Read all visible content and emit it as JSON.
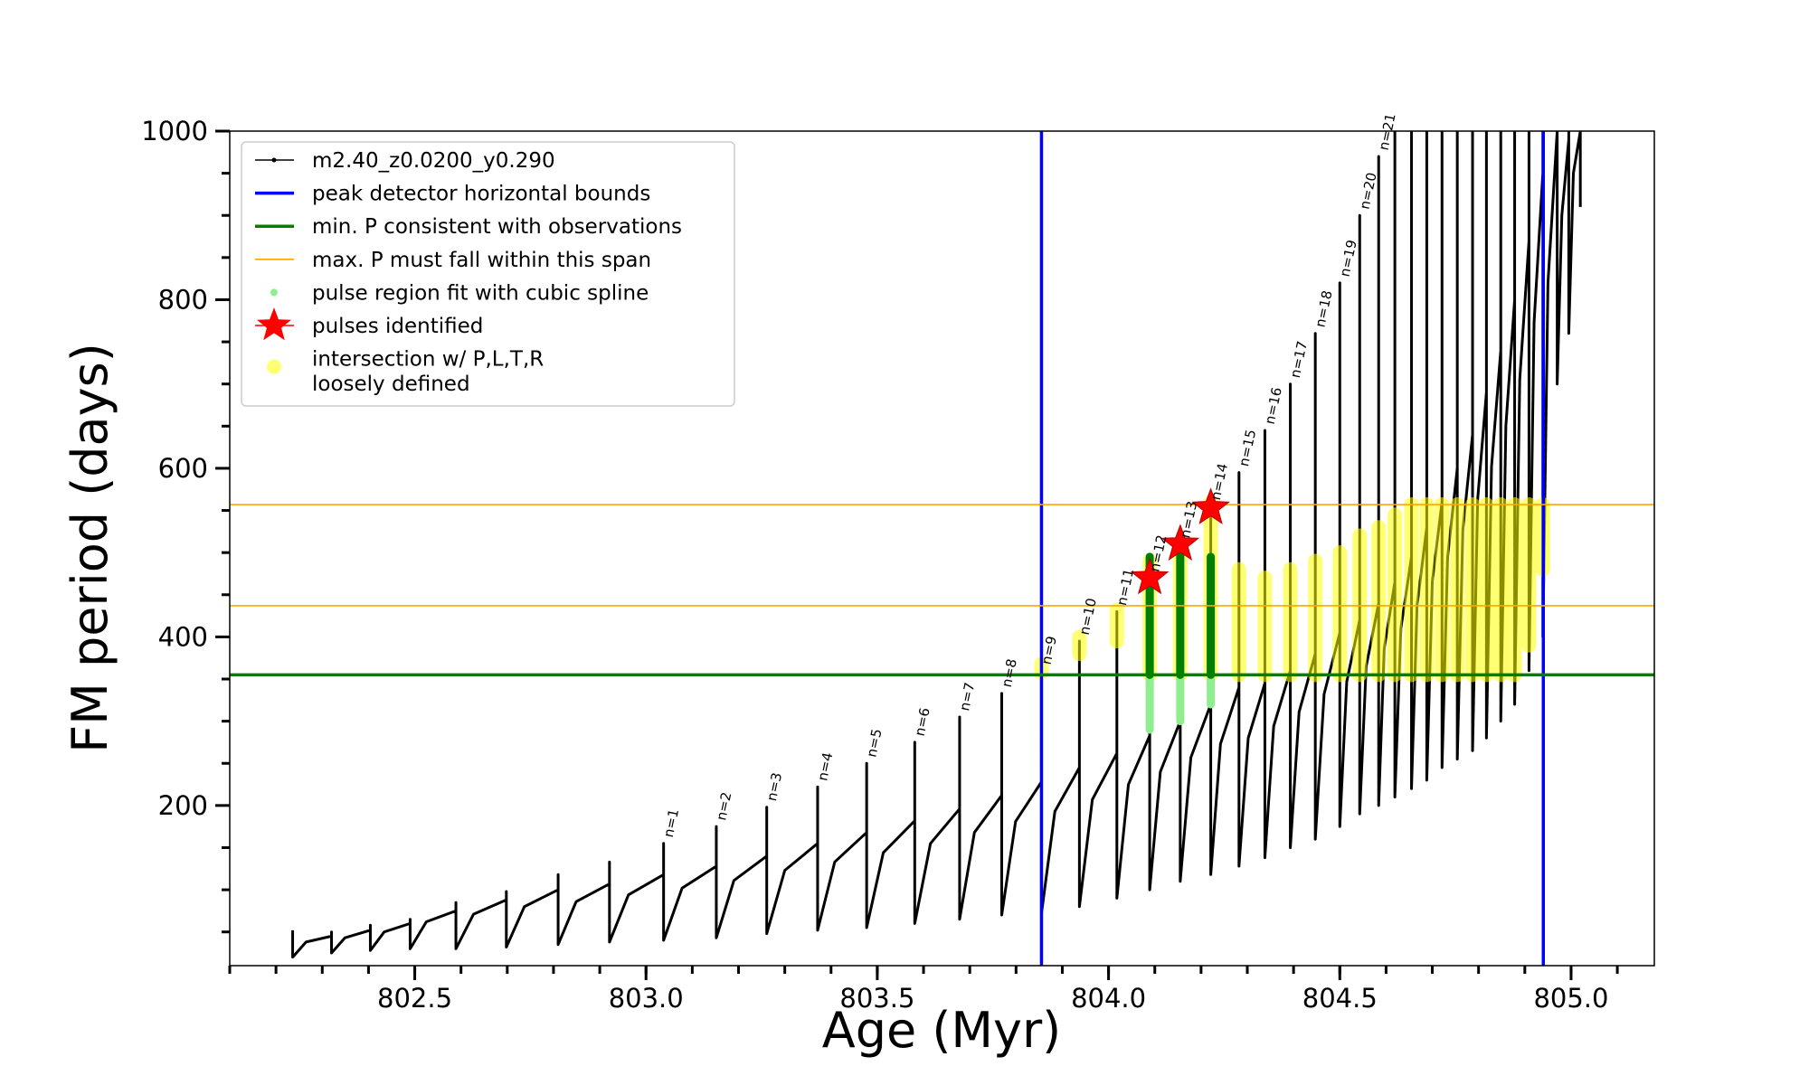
{
  "chart_data": {
    "type": "line",
    "xlabel": "Age (Myr)",
    "ylabel": "FM period (days)",
    "xlim": [
      802.1,
      805.18
    ],
    "ylim": [
      10,
      1000
    ],
    "xticks": [
      802.5,
      {
        "value": 803,
        "label": "803.0"
      },
      803.5,
      {
        "value": 804,
        "label": "804.0"
      },
      804.5,
      {
        "value": 805,
        "label": "805.0"
      }
    ],
    "xminorticks": [
      802.1,
      802.2,
      802.3,
      802.4,
      802.5,
      802.6,
      802.7,
      802.8,
      802.9,
      803.0,
      803.1,
      803.2,
      803.3,
      803.4,
      803.5,
      803.6,
      803.7,
      803.8,
      803.9,
      804.0,
      804.1,
      804.2,
      804.3,
      804.4,
      804.5,
      804.6,
      804.7,
      804.8,
      804.9,
      805.0,
      805.1
    ],
    "yticks": [
      200,
      400,
      600,
      800,
      1000
    ],
    "yminorticks": [
      50,
      100,
      150,
      250,
      300,
      350,
      450,
      500,
      550,
      650,
      700,
      750,
      850,
      900,
      950
    ],
    "legend": "upper left",
    "series": [
      {
        "name": "m2.40_z0.0200_y0.290",
        "kind": "line",
        "color": "#000000",
        "x": [
          802.236,
          802.236,
          802.265,
          802.32,
          802.32,
          802.32,
          802.349,
          802.404,
          802.404,
          802.404,
          802.434,
          802.49,
          802.49,
          802.49,
          802.525,
          802.589,
          802.589,
          802.589,
          802.627,
          802.698,
          802.698,
          802.698,
          802.737,
          802.81,
          802.81,
          802.81,
          802.849,
          802.921,
          802.921,
          802.921,
          802.962,
          803.038,
          803.038,
          803.038,
          803.078,
          803.152,
          803.152,
          803.152,
          803.19,
          803.261,
          803.261,
          803.261,
          803.3,
          803.371,
          803.371,
          803.371,
          803.408,
          803.477,
          803.477,
          803.477,
          803.513,
          803.581,
          803.581,
          803.581,
          803.615,
          803.678,
          803.678,
          803.678,
          803.71,
          803.769,
          803.769,
          803.769,
          803.799,
          803.855,
          803.855,
          803.855,
          803.884,
          803.937,
          803.937,
          803.937,
          803.965,
          804.018,
          804.018,
          804.018,
          804.043,
          804.089,
          804.089,
          804.089,
          804.112,
          804.155,
          804.155,
          804.155,
          804.178,
          804.221,
          804.221,
          804.221,
          804.242,
          804.282,
          804.282,
          804.282,
          804.302,
          804.338,
          804.338,
          804.338,
          804.357,
          804.393,
          804.393,
          804.393,
          804.412,
          804.447,
          804.447,
          804.447,
          804.466,
          804.5,
          804.5,
          804.5,
          804.515,
          804.543,
          804.543,
          804.543,
          804.557,
          804.584,
          804.584,
          804.584,
          804.596,
          804.619,
          804.619,
          804.619,
          804.632,
          804.655,
          804.655,
          804.655,
          804.667,
          804.688,
          804.688,
          804.688,
          804.7,
          804.721,
          804.721,
          804.721,
          804.733,
          804.754,
          804.754,
          804.754,
          804.766,
          804.787,
          804.787,
          804.787,
          804.798,
          804.817,
          804.817,
          804.817,
          804.828,
          804.848,
          804.848,
          804.848,
          804.859,
          804.878,
          804.878,
          804.878,
          804.889,
          804.909,
          804.909,
          804.909,
          804.92,
          804.939,
          804.939,
          804.939,
          804.95,
          804.97,
          804.97,
          804.97,
          804.98,
          804.995,
          804.995,
          804.995,
          805.005,
          805.02,
          805.02,
          805.02
        ],
        "values": [
          52,
          20,
          38,
          45,
          50,
          25,
          43,
          52,
          58,
          28,
          50,
          60,
          65,
          30,
          62,
          75,
          85,
          30,
          71,
          88,
          98,
          32,
          80,
          100,
          118,
          35,
          86,
          107,
          133,
          38,
          94,
          118,
          155,
          40,
          102,
          128,
          175,
          43,
          111,
          140,
          198,
          48,
          123,
          155,
          222,
          52,
          133,
          168,
          250,
          55,
          144,
          182,
          275,
          60,
          155,
          196,
          305,
          65,
          168,
          212,
          333,
          70,
          181,
          228,
          360,
          72,
          193,
          245,
          395,
          80,
          207,
          262,
          430,
          90,
          225,
          283,
          470,
          100,
          240,
          300,
          510,
          110,
          257,
          320,
          555,
          118,
          273,
          340,
          595,
          128,
          280,
          345,
          645,
          138,
          294,
          360,
          700,
          150,
          311,
          380,
          760,
          160,
          332,
          405,
          820,
          175,
          347,
          420,
          900,
          190,
          365,
          440,
          970,
          200,
          386,
          465,
          1000,
          210,
          410,
          495,
          1000,
          220,
          437,
          530,
          1000,
          230,
          466,
          560,
          1000,
          245,
          494,
          600,
          1000,
          255,
          527,
          640,
          1000,
          265,
          563,
          690,
          1000,
          280,
          602,
          740,
          1000,
          300,
          650,
          800,
          1000,
          320,
          705,
          870,
          1000,
          360,
          773,
          950,
          1000,
          400,
          820,
          1000,
          1000,
          700,
          900,
          990,
          1000,
          760,
          950,
          1000,
          1000,
          910
        ]
      },
      {
        "name": "peak detector horizontal bounds",
        "kind": "vline",
        "color": "#0000ff",
        "values": [
          803.855,
          804.94
        ]
      },
      {
        "name": "min. P consistent with observations",
        "kind": "hline",
        "color": "#008000",
        "values": [
          355
        ]
      },
      {
        "name": "max. P must fall within this span",
        "kind": "hline",
        "color": "#ffa500",
        "values": [
          437,
          557
        ]
      },
      {
        "name": "pulse region fit with cubic spline",
        "kind": "column",
        "color": "#90ee90",
        "dark_color": "#008000",
        "x": [
          804.089,
          804.155,
          804.221
        ],
        "low": [
          290,
          300,
          320
        ],
        "high": [
          495,
          500,
          495
        ]
      },
      {
        "name": "pulses identified",
        "kind": "star",
        "color": "#ff0000",
        "x": [
          804.089,
          804.155,
          804.221
        ],
        "values": [
          470,
          510,
          553
        ]
      },
      {
        "name": "intersection w/ P,L,T,R\nloosely defined",
        "kind": "column",
        "color": "#ffff00",
        "x": [
          803.855,
          803.937,
          804.018,
          804.089,
          804.155,
          804.221,
          804.282,
          804.338,
          804.393,
          804.447,
          804.5,
          804.543,
          804.584,
          804.619,
          804.655,
          804.688,
          804.721,
          804.754,
          804.787,
          804.817,
          804.848,
          804.878,
          804.909,
          804.939
        ],
        "low": [
          358,
          380,
          395,
          355,
          355,
          355,
          355,
          355,
          355,
          355,
          355,
          355,
          355,
          355,
          355,
          355,
          355,
          355,
          355,
          355,
          355,
          355,
          390,
          480
        ],
        "high": [
          368,
          400,
          432,
          490,
          500,
          560,
          480,
          470,
          480,
          490,
          500,
          520,
          530,
          545,
          557,
          557,
          557,
          557,
          557,
          557,
          557,
          557,
          557,
          557
        ]
      }
    ],
    "annotations": [
      {
        "text": "n=1",
        "x": 803.038,
        "y": 155
      },
      {
        "text": "n=2",
        "x": 803.152,
        "y": 175
      },
      {
        "text": "n=3",
        "x": 803.261,
        "y": 198
      },
      {
        "text": "n=4",
        "x": 803.371,
        "y": 222
      },
      {
        "text": "n=5",
        "x": 803.477,
        "y": 250
      },
      {
        "text": "n=6",
        "x": 803.581,
        "y": 275
      },
      {
        "text": "n=7",
        "x": 803.678,
        "y": 305
      },
      {
        "text": "n=8",
        "x": 803.769,
        "y": 333
      },
      {
        "text": "n=9",
        "x": 803.855,
        "y": 360
      },
      {
        "text": "n=10",
        "x": 803.937,
        "y": 395
      },
      {
        "text": "n=11",
        "x": 804.018,
        "y": 430
      },
      {
        "text": "n=12",
        "x": 804.089,
        "y": 470
      },
      {
        "text": "n=13",
        "x": 804.155,
        "y": 510
      },
      {
        "text": "n=14",
        "x": 804.221,
        "y": 555
      },
      {
        "text": "n=15",
        "x": 804.282,
        "y": 595
      },
      {
        "text": "n=16",
        "x": 804.338,
        "y": 645
      },
      {
        "text": "n=17",
        "x": 804.393,
        "y": 700
      },
      {
        "text": "n=18",
        "x": 804.447,
        "y": 760
      },
      {
        "text": "n=19",
        "x": 804.5,
        "y": 820
      },
      {
        "text": "n=20",
        "x": 804.543,
        "y": 900
      },
      {
        "text": "n=21",
        "x": 804.584,
        "y": 970
      }
    ]
  }
}
